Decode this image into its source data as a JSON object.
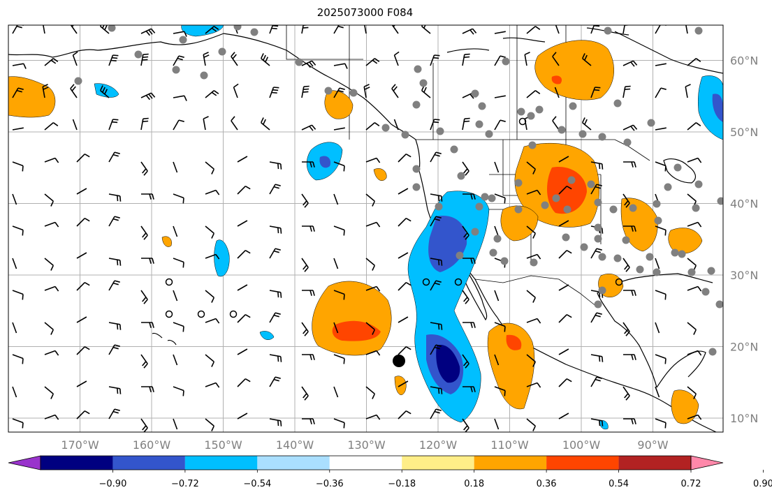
{
  "title": "2025073000 F084",
  "lon_ticks": [
    {
      "lon": -170,
      "label": "170°W"
    },
    {
      "lon": -160,
      "label": "160°W"
    },
    {
      "lon": -150,
      "label": "150°W"
    },
    {
      "lon": -140,
      "label": "140°W"
    },
    {
      "lon": -130,
      "label": "130°W"
    },
    {
      "lon": -120,
      "label": "120°W"
    },
    {
      "lon": -110,
      "label": "110°W"
    },
    {
      "lon": -100,
      "label": "100°W"
    },
    {
      "lon": -90,
      "label": "90°W"
    }
  ],
  "lat_ticks": [
    {
      "lat": 60,
      "label": "60°N"
    },
    {
      "lat": 50,
      "label": "50°N"
    },
    {
      "lat": 40,
      "label": "40°N"
    },
    {
      "lat": 30,
      "label": "30°N"
    },
    {
      "lat": 20,
      "label": "20°N"
    },
    {
      "lat": 10,
      "label": "10°N"
    }
  ],
  "colorbar": {
    "colors": [
      "#9933cc",
      "#000080",
      "#3355cc",
      "#00bfff",
      "#aadfff",
      "#ffffff",
      "#ffee88",
      "#ffa500",
      "#ff4500",
      "#b22222",
      "#ff88aa"
    ],
    "tick_labels": [
      "−0.90",
      "−0.72",
      "−0.54",
      "−0.36",
      "−0.18",
      "0.18",
      "0.36",
      "0.54",
      "0.72",
      "0.90"
    ]
  },
  "colors": {
    "orange": "#ffa500",
    "red": "#ff4500",
    "lightblue": "#aadfff",
    "cyan": "#00bfff",
    "blue": "#3355cc",
    "navy": "#000080",
    "station": "#808080",
    "grid": "#b0b0b0"
  }
}
